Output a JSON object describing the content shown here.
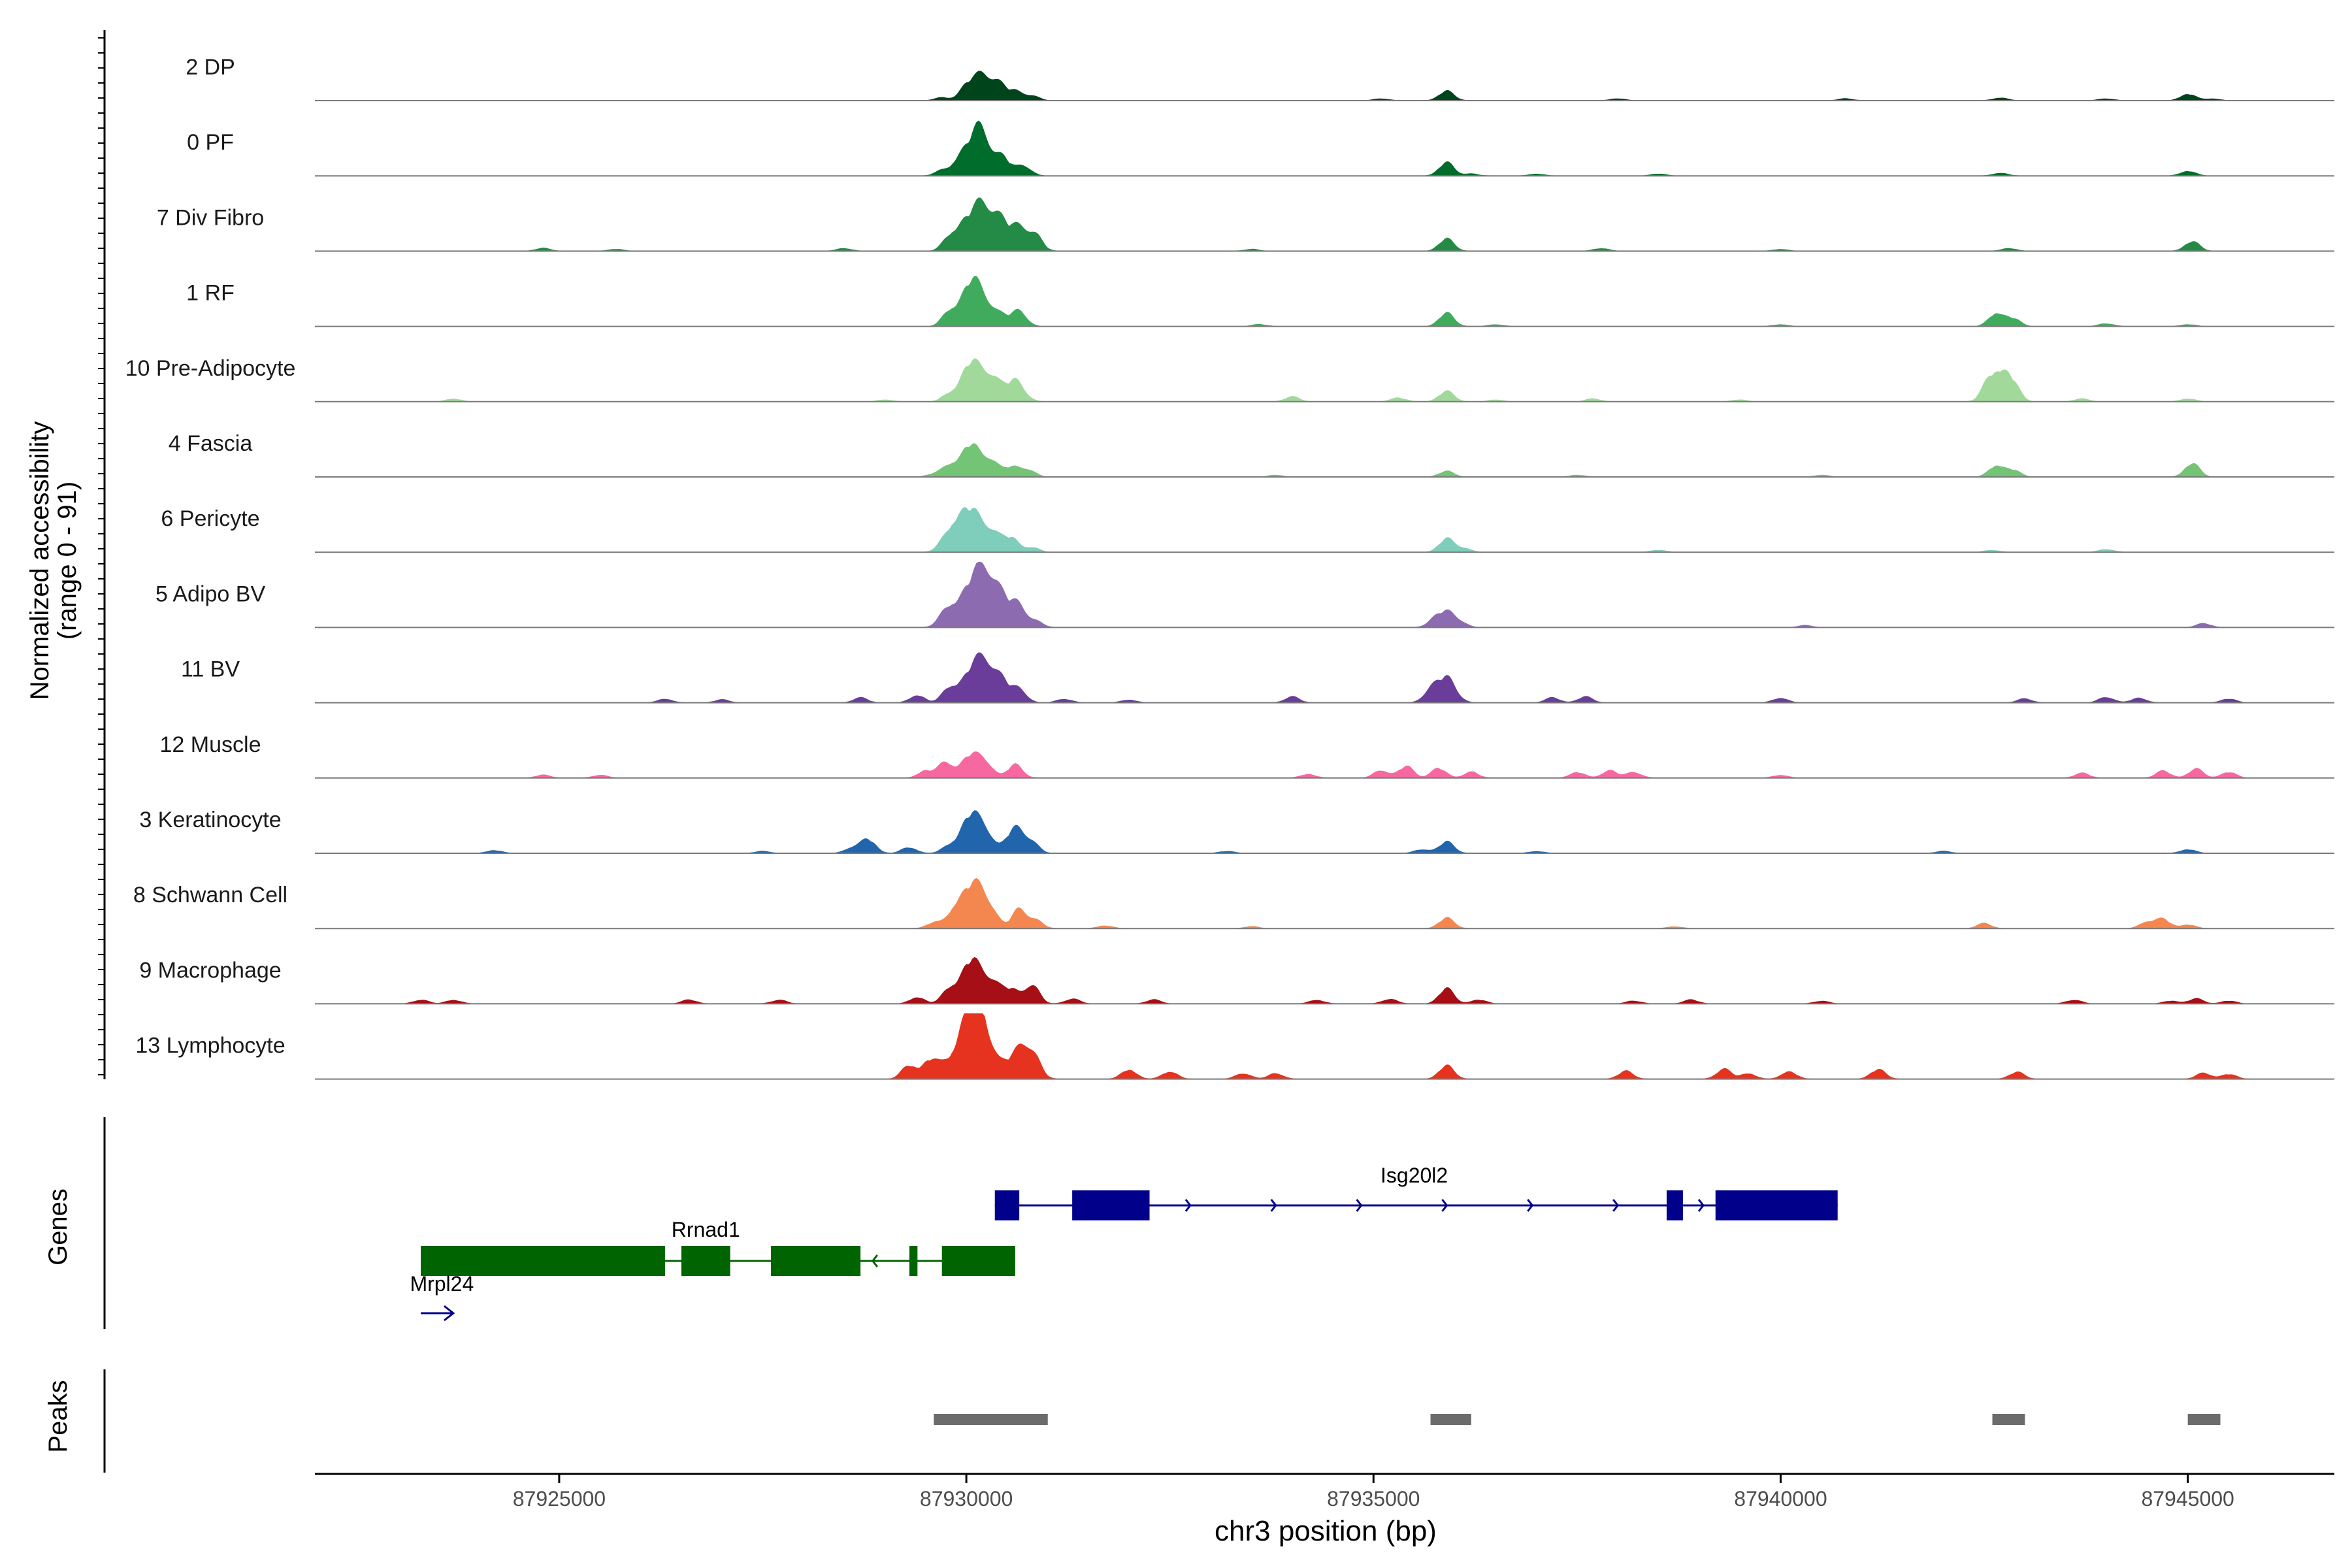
{
  "chart_data": {
    "type": "area",
    "title": "",
    "xlabel": "chr3 position (bp)",
    "ylabel": "Normalized accessibility",
    "ylabel_range": "(range 0 - 91)",
    "ylim": [
      0,
      91
    ],
    "xlim": [
      87922000,
      87946800
    ],
    "x_ticks": [
      87925000,
      87930000,
      87935000,
      87940000,
      87945000
    ],
    "x_tick_labels": [
      "87925000",
      "87930000",
      "87935000",
      "87940000",
      "87945000"
    ],
    "genes_label": "Genes",
    "peaks_label": "Peaks",
    "tracks": [
      {
        "name": "2 DP",
        "color": "#00441b",
        "peaks": [
          [
            87929700,
            3
          ],
          [
            87930000,
            14
          ],
          [
            87930200,
            26
          ],
          [
            87930400,
            15
          ],
          [
            87930600,
            9
          ],
          [
            87930800,
            5
          ],
          [
            87935100,
            2
          ],
          [
            87935900,
            10
          ],
          [
            87938000,
            2
          ],
          [
            87940800,
            2
          ],
          [
            87942700,
            3
          ],
          [
            87944000,
            2
          ],
          [
            87945000,
            7
          ],
          [
            87945300,
            2
          ]
        ]
      },
      {
        "name": "0 PF",
        "color": "#006d2c",
        "peaks": [
          [
            87929700,
            5
          ],
          [
            87929900,
            12
          ],
          [
            87930050,
            22
          ],
          [
            87930200,
            40
          ],
          [
            87930450,
            18
          ],
          [
            87930700,
            11
          ],
          [
            87935900,
            14
          ],
          [
            87936200,
            2
          ],
          [
            87937000,
            2
          ],
          [
            87938500,
            2
          ],
          [
            87942700,
            3
          ],
          [
            87945000,
            5
          ]
        ]
      },
      {
        "name": "7 Div Fibro",
        "color": "#238b45",
        "peaks": [
          [
            87924800,
            3
          ],
          [
            87925700,
            2
          ],
          [
            87928500,
            3
          ],
          [
            87929800,
            14
          ],
          [
            87930000,
            28
          ],
          [
            87930200,
            40
          ],
          [
            87930400,
            30
          ],
          [
            87930650,
            24
          ],
          [
            87930850,
            14
          ],
          [
            87933500,
            2
          ],
          [
            87935900,
            13
          ],
          [
            87937800,
            3
          ],
          [
            87940000,
            2
          ],
          [
            87942800,
            3
          ],
          [
            87945050,
            10
          ]
        ]
      },
      {
        "name": "1 RF",
        "color": "#41ab5d",
        "peaks": [
          [
            87929800,
            16
          ],
          [
            87930050,
            44
          ],
          [
            87930250,
            22
          ],
          [
            87930450,
            8
          ],
          [
            87930650,
            16
          ],
          [
            87933600,
            2
          ],
          [
            87935900,
            14
          ],
          [
            87936500,
            2
          ],
          [
            87940000,
            2
          ],
          [
            87942650,
            14
          ],
          [
            87942850,
            8
          ],
          [
            87944000,
            3
          ],
          [
            87945000,
            2
          ]
        ]
      },
      {
        "name": "10 Pre-Adipocyte",
        "color": "#a1d99b",
        "peaks": [
          [
            87923700,
            3
          ],
          [
            87929000,
            2
          ],
          [
            87929800,
            8
          ],
          [
            87930050,
            40
          ],
          [
            87930300,
            28
          ],
          [
            87930600,
            22
          ],
          [
            87934000,
            5
          ],
          [
            87935300,
            4
          ],
          [
            87935900,
            11
          ],
          [
            87936500,
            2
          ],
          [
            87937700,
            3
          ],
          [
            87939500,
            2
          ],
          [
            87942550,
            14
          ],
          [
            87942700,
            28
          ],
          [
            87942850,
            14
          ],
          [
            87943700,
            3
          ],
          [
            87945000,
            3
          ]
        ]
      },
      {
        "name": "4 Fascia",
        "color": "#74c476",
        "peaks": [
          [
            87929600,
            3
          ],
          [
            87929800,
            12
          ],
          [
            87930050,
            34
          ],
          [
            87930300,
            18
          ],
          [
            87930550,
            10
          ],
          [
            87930750,
            8
          ],
          [
            87933800,
            2
          ],
          [
            87935900,
            6
          ],
          [
            87937500,
            2
          ],
          [
            87940500,
            2
          ],
          [
            87942650,
            12
          ],
          [
            87942850,
            7
          ],
          [
            87945050,
            14
          ]
        ]
      },
      {
        "name": "6 Pericyte",
        "color": "#7fcdbb",
        "peaks": [
          [
            87929700,
            3
          ],
          [
            87929850,
            26
          ],
          [
            87930050,
            40
          ],
          [
            87930300,
            24
          ],
          [
            87930550,
            14
          ],
          [
            87930800,
            5
          ],
          [
            87935900,
            14
          ],
          [
            87936100,
            4
          ],
          [
            87938500,
            2
          ],
          [
            87942600,
            2
          ],
          [
            87944000,
            3
          ]
        ]
      },
      {
        "name": "5 Adipo BV",
        "color": "#8c6bb1",
        "peaks": [
          [
            87929800,
            22
          ],
          [
            87930050,
            40
          ],
          [
            87930250,
            52
          ],
          [
            87930450,
            26
          ],
          [
            87930650,
            20
          ],
          [
            87930850,
            6
          ],
          [
            87935750,
            8
          ],
          [
            87935900,
            14
          ],
          [
            87936050,
            6
          ],
          [
            87940300,
            2
          ],
          [
            87945200,
            4
          ]
        ]
      },
      {
        "name": "11 BV",
        "color": "#6a3d9a",
        "peaks": [
          [
            87926300,
            4
          ],
          [
            87927000,
            3
          ],
          [
            87928700,
            5
          ],
          [
            87929400,
            8
          ],
          [
            87929800,
            16
          ],
          [
            87930050,
            30
          ],
          [
            87930250,
            40
          ],
          [
            87930450,
            18
          ],
          [
            87930650,
            14
          ],
          [
            87931200,
            4
          ],
          [
            87932000,
            3
          ],
          [
            87934000,
            6
          ],
          [
            87935700,
            12
          ],
          [
            87935900,
            26
          ],
          [
            87937200,
            5
          ],
          [
            87937600,
            6
          ],
          [
            87940000,
            5
          ],
          [
            87943000,
            4
          ],
          [
            87944000,
            6
          ],
          [
            87944400,
            5
          ],
          [
            87945500,
            4
          ]
        ]
      },
      {
        "name": "12 Muscle",
        "color": "#f768a1",
        "peaks": [
          [
            87924800,
            3
          ],
          [
            87925500,
            3
          ],
          [
            87929500,
            8
          ],
          [
            87929750,
            16
          ],
          [
            87930050,
            24
          ],
          [
            87930250,
            14
          ],
          [
            87930600,
            14
          ],
          [
            87934200,
            4
          ],
          [
            87935100,
            8
          ],
          [
            87935400,
            12
          ],
          [
            87935800,
            10
          ],
          [
            87936200,
            6
          ],
          [
            87937500,
            6
          ],
          [
            87937900,
            8
          ],
          [
            87938200,
            6
          ],
          [
            87940000,
            3
          ],
          [
            87943700,
            5
          ],
          [
            87944700,
            7
          ],
          [
            87945100,
            9
          ],
          [
            87945500,
            6
          ]
        ]
      },
      {
        "name": "3 Keratinocyte",
        "color": "#2166ac",
        "peaks": [
          [
            87924200,
            3
          ],
          [
            87927500,
            2
          ],
          [
            87928600,
            6
          ],
          [
            87928800,
            14
          ],
          [
            87929300,
            6
          ],
          [
            87929800,
            8
          ],
          [
            87930050,
            40
          ],
          [
            87930250,
            20
          ],
          [
            87930600,
            26
          ],
          [
            87930800,
            10
          ],
          [
            87933200,
            2
          ],
          [
            87935600,
            4
          ],
          [
            87935900,
            12
          ],
          [
            87937000,
            2
          ],
          [
            87942000,
            2
          ],
          [
            87945000,
            4
          ]
        ]
      },
      {
        "name": "8 Schwann Cell",
        "color": "#f4874f",
        "peaks": [
          [
            87929600,
            6
          ],
          [
            87929850,
            18
          ],
          [
            87930050,
            40
          ],
          [
            87930250,
            28
          ],
          [
            87930650,
            20
          ],
          [
            87930850,
            8
          ],
          [
            87931700,
            3
          ],
          [
            87933500,
            2
          ],
          [
            87935900,
            11
          ],
          [
            87938700,
            2
          ],
          [
            87942500,
            5
          ],
          [
            87944500,
            7
          ],
          [
            87944700,
            9
          ],
          [
            87945000,
            4
          ]
        ]
      },
      {
        "name": "9 Macrophage",
        "color": "#a50f15",
        "peaks": [
          [
            87923300,
            4
          ],
          [
            87923700,
            4
          ],
          [
            87926600,
            4
          ],
          [
            87927700,
            4
          ],
          [
            87929400,
            7
          ],
          [
            87929800,
            16
          ],
          [
            87930050,
            44
          ],
          [
            87930300,
            26
          ],
          [
            87930550,
            14
          ],
          [
            87930800,
            20
          ],
          [
            87931300,
            5
          ],
          [
            87932300,
            4
          ],
          [
            87934300,
            4
          ],
          [
            87935200,
            5
          ],
          [
            87935900,
            16
          ],
          [
            87936300,
            4
          ],
          [
            87938200,
            3
          ],
          [
            87938900,
            4
          ],
          [
            87940500,
            3
          ],
          [
            87943600,
            4
          ],
          [
            87944800,
            3
          ],
          [
            87945100,
            5
          ],
          [
            87945500,
            3
          ]
        ]
      },
      {
        "name": "13 Lymphocyte",
        "color": "#e6331f",
        "peaks": [
          [
            87929300,
            14
          ],
          [
            87929550,
            20
          ],
          [
            87929750,
            12
          ],
          [
            87929950,
            36
          ],
          [
            87930100,
            58
          ],
          [
            87930250,
            36
          ],
          [
            87930500,
            12
          ],
          [
            87930700,
            34
          ],
          [
            87930850,
            12
          ],
          [
            87932000,
            10
          ],
          [
            87932500,
            8
          ],
          [
            87933400,
            6
          ],
          [
            87933800,
            6
          ],
          [
            87935900,
            14
          ],
          [
            87938100,
            8
          ],
          [
            87939300,
            10
          ],
          [
            87939600,
            6
          ],
          [
            87940100,
            8
          ],
          [
            87941200,
            10
          ],
          [
            87942900,
            7
          ],
          [
            87945200,
            6
          ],
          [
            87945500,
            5
          ]
        ]
      }
    ],
    "genes": [
      {
        "name": "Isg20l2",
        "strand": "+",
        "color": "#00008b",
        "start": 87930350,
        "end": 87940700,
        "exons": [
          [
            87930350,
            87930650
          ],
          [
            87931300,
            87932250
          ],
          [
            87938600,
            87938800
          ],
          [
            87939200,
            87940700
          ]
        ]
      },
      {
        "name": "Rrnad1",
        "strand": "-",
        "color": "#006400",
        "start": 87923300,
        "end": 87930600,
        "exons": [
          [
            87923300,
            87926300
          ],
          [
            87926500,
            87927100
          ],
          [
            87927600,
            87928700
          ],
          [
            87929300,
            87929400
          ],
          [
            87929700,
            87930600
          ]
        ]
      },
      {
        "name": "Mrpl24",
        "strand": "+",
        "color": "#00008b",
        "start": 87923300,
        "end": 87923700,
        "exons": []
      }
    ],
    "peaks": [
      {
        "start": 87929600,
        "end": 87931000
      },
      {
        "start": 87935700,
        "end": 87936200
      },
      {
        "start": 87942600,
        "end": 87943000
      },
      {
        "start": 87945000,
        "end": 87945400
      }
    ],
    "track_background": "#ffffff",
    "peak_color": "#6b6b6b"
  }
}
